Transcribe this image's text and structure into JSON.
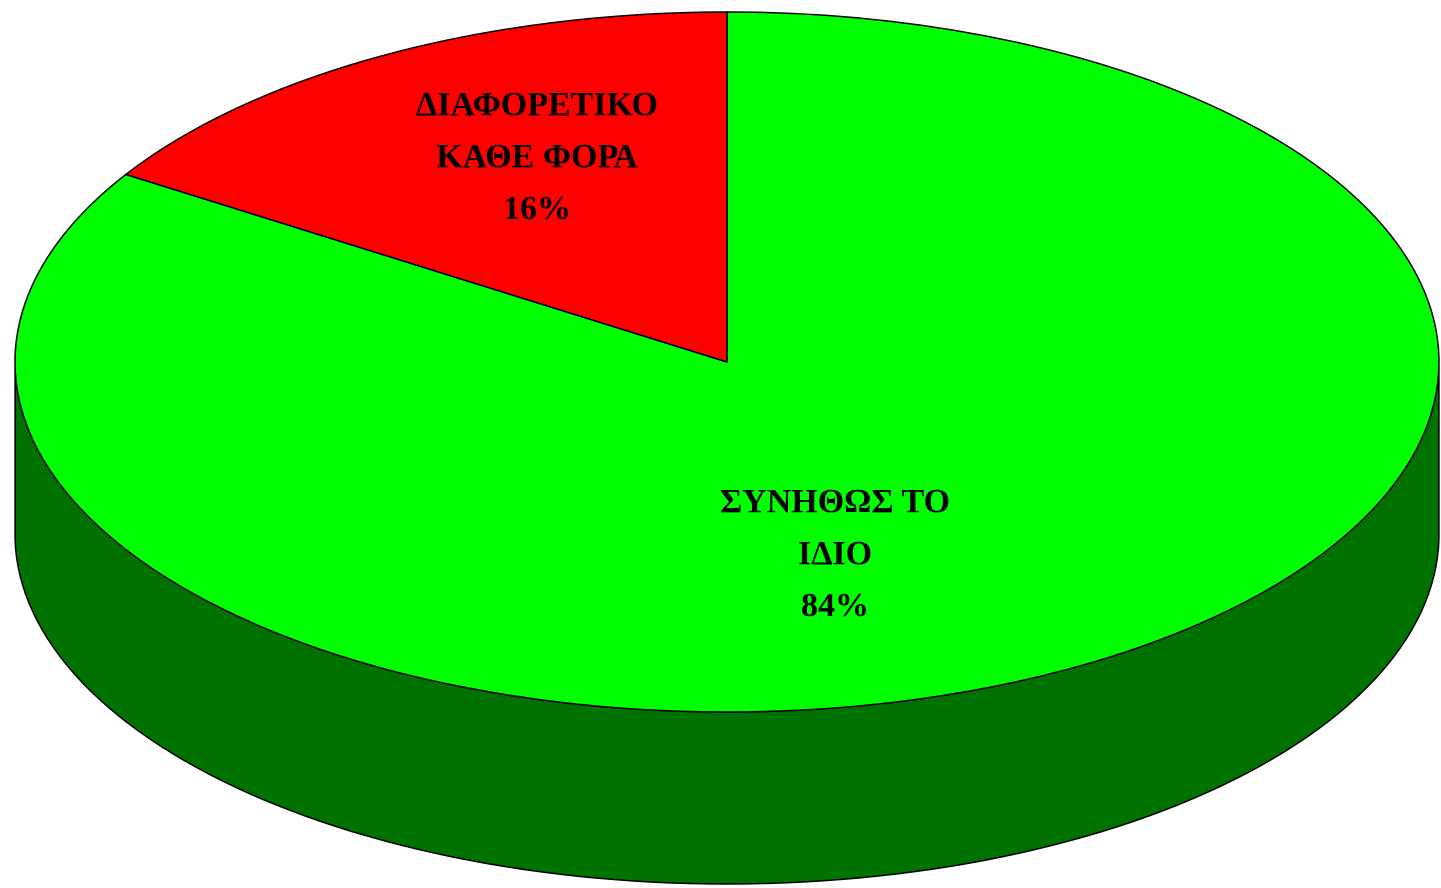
{
  "chart_data": {
    "type": "pie",
    "style": "3d",
    "start_angle_deg": 90,
    "direction": "clockwise",
    "slices": [
      {
        "label_lines": [
          "ΣΥΝΗΘΩΣ ΤΟ",
          "ΙΔΙΟ"
        ],
        "value": 84,
        "percent_label": "84%",
        "color": "#00ff00",
        "side_color": "#007200"
      },
      {
        "label_lines": [
          "ΔΙΑΦΟΡΕΤΙΚΟ",
          "ΚΑΘΕ ΦΟΡΑ"
        ],
        "value": 16,
        "percent_label": "16%",
        "color": "#ff0000",
        "side_color": "#990000"
      }
    ]
  }
}
